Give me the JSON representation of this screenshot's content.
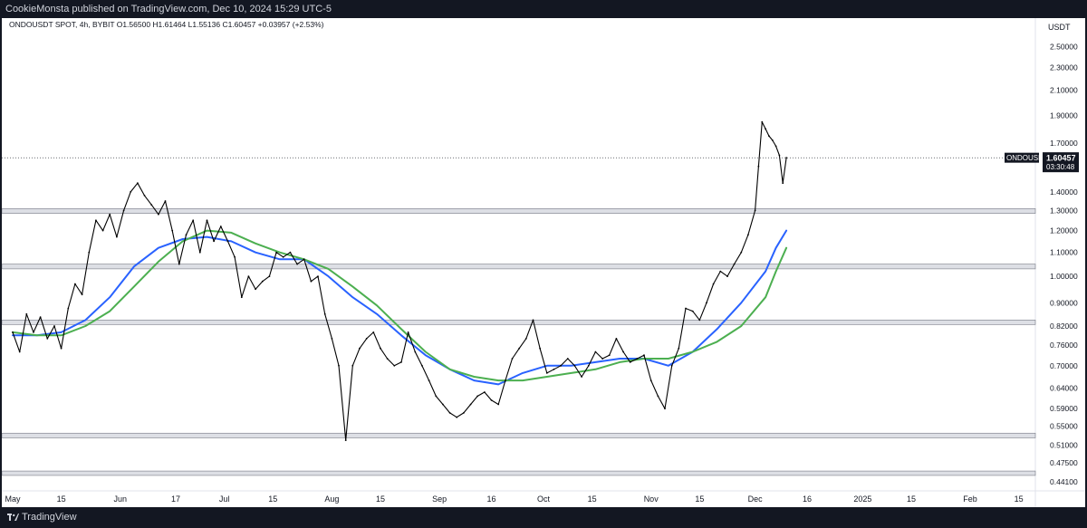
{
  "header": {
    "published_text": "CookieMonsta published on TradingView.com, Dec 10, 2024 15:29 UTC-5"
  },
  "symbol": {
    "info_line": "ONDOUSDT SPOT, 4h, BYBIT  O1.56500  H1.61464  L1.55136  C1.60457  +0.03957 (+2.53%)"
  },
  "footer": {
    "brand": "TradingView",
    "logo_icon": "tradingview-logo-icon"
  },
  "colors": {
    "candle": "#000000",
    "ma_fast": "#2962ff",
    "ma_slow": "#4caf50",
    "zone_fill": "#d1d4dc",
    "zone_stroke": "#787b86",
    "price_label_bg": "#131722"
  },
  "chart_data": {
    "type": "line",
    "symbol": "ONDOUSDT",
    "timeframe": "4h",
    "exchange": "BYBIT",
    "currency": "USDT",
    "yscale": "log",
    "ylim": [
      0.425,
      2.8
    ],
    "xlim": [
      "2024-05-01",
      "2025-02-19"
    ],
    "last_price": {
      "label": "ONDOUSDT",
      "value": "1.60457",
      "countdown": "03:30:48",
      "y": 1.60457
    },
    "y_ticks": [
      "2.50000",
      "2.30000",
      "2.10000",
      "1.90000",
      "1.70000",
      "1.40000",
      "1.30000",
      "1.20000",
      "1.10000",
      "1.00000",
      "0.90000",
      "0.82000",
      "0.76000",
      "0.70000",
      "0.64000",
      "0.59000",
      "0.55000",
      "0.51000",
      "0.47500",
      "0.44100"
    ],
    "x_ticks": [
      {
        "label": "May",
        "date": "2024-05-01"
      },
      {
        "label": "15",
        "date": "2024-05-15"
      },
      {
        "label": "Jun",
        "date": "2024-06-01"
      },
      {
        "label": "17",
        "date": "2024-06-17"
      },
      {
        "label": "Jul",
        "date": "2024-07-01"
      },
      {
        "label": "15",
        "date": "2024-07-15"
      },
      {
        "label": "Aug",
        "date": "2024-08-01"
      },
      {
        "label": "15",
        "date": "2024-08-15"
      },
      {
        "label": "Sep",
        "date": "2024-09-01"
      },
      {
        "label": "16",
        "date": "2024-09-16"
      },
      {
        "label": "Oct",
        "date": "2024-10-01"
      },
      {
        "label": "15",
        "date": "2024-10-15"
      },
      {
        "label": "Nov",
        "date": "2024-11-01"
      },
      {
        "label": "15",
        "date": "2024-11-15"
      },
      {
        "label": "Dec",
        "date": "2024-12-01"
      },
      {
        "label": "16",
        "date": "2024-12-16"
      },
      {
        "label": "2025",
        "date": "2025-01-01"
      },
      {
        "label": "15",
        "date": "2025-01-15"
      },
      {
        "label": "Feb",
        "date": "2025-02-01"
      },
      {
        "label": "15",
        "date": "2025-02-15"
      }
    ],
    "zones": [
      {
        "low": 1.285,
        "high": 1.31
      },
      {
        "low": 1.03,
        "high": 1.05
      },
      {
        "low": 0.825,
        "high": 0.84
      },
      {
        "low": 0.525,
        "high": 0.535
      },
      {
        "low": 0.452,
        "high": 0.46
      }
    ],
    "series": [
      {
        "kind": "price",
        "points": [
          [
            "2024-05-01",
            0.8
          ],
          [
            "2024-05-03",
            0.74
          ],
          [
            "2024-05-05",
            0.86
          ],
          [
            "2024-05-07",
            0.8
          ],
          [
            "2024-05-09",
            0.85
          ],
          [
            "2024-05-11",
            0.78
          ],
          [
            "2024-05-13",
            0.82
          ],
          [
            "2024-05-15",
            0.75
          ],
          [
            "2024-05-17",
            0.88
          ],
          [
            "2024-05-19",
            0.97
          ],
          [
            "2024-05-21",
            0.93
          ],
          [
            "2024-05-23",
            1.1
          ],
          [
            "2024-05-25",
            1.25
          ],
          [
            "2024-05-27",
            1.2
          ],
          [
            "2024-05-29",
            1.28
          ],
          [
            "2024-05-31",
            1.17
          ],
          [
            "2024-06-02",
            1.3
          ],
          [
            "2024-06-04",
            1.4
          ],
          [
            "2024-06-06",
            1.45
          ],
          [
            "2024-06-08",
            1.38
          ],
          [
            "2024-06-10",
            1.33
          ],
          [
            "2024-06-12",
            1.28
          ],
          [
            "2024-06-14",
            1.35
          ],
          [
            "2024-06-16",
            1.2
          ],
          [
            "2024-06-18",
            1.05
          ],
          [
            "2024-06-20",
            1.18
          ],
          [
            "2024-06-22",
            1.25
          ],
          [
            "2024-06-24",
            1.1
          ],
          [
            "2024-06-26",
            1.25
          ],
          [
            "2024-06-28",
            1.15
          ],
          [
            "2024-06-30",
            1.22
          ],
          [
            "2024-07-02",
            1.15
          ],
          [
            "2024-07-04",
            1.08
          ],
          [
            "2024-07-06",
            0.92
          ],
          [
            "2024-07-08",
            1.0
          ],
          [
            "2024-07-10",
            0.95
          ],
          [
            "2024-07-12",
            0.98
          ],
          [
            "2024-07-14",
            1.0
          ],
          [
            "2024-07-16",
            1.1
          ],
          [
            "2024-07-18",
            1.08
          ],
          [
            "2024-07-20",
            1.1
          ],
          [
            "2024-07-22",
            1.05
          ],
          [
            "2024-07-24",
            1.07
          ],
          [
            "2024-07-26",
            0.98
          ],
          [
            "2024-07-28",
            1.0
          ],
          [
            "2024-07-30",
            0.86
          ],
          [
            "2024-08-01",
            0.78
          ],
          [
            "2024-08-03",
            0.7
          ],
          [
            "2024-08-05",
            0.52
          ],
          [
            "2024-08-07",
            0.7
          ],
          [
            "2024-08-09",
            0.75
          ],
          [
            "2024-08-11",
            0.78
          ],
          [
            "2024-08-13",
            0.8
          ],
          [
            "2024-08-15",
            0.75
          ],
          [
            "2024-08-17",
            0.72
          ],
          [
            "2024-08-19",
            0.7
          ],
          [
            "2024-08-21",
            0.71
          ],
          [
            "2024-08-23",
            0.8
          ],
          [
            "2024-08-25",
            0.74
          ],
          [
            "2024-08-27",
            0.7
          ],
          [
            "2024-08-29",
            0.66
          ],
          [
            "2024-08-31",
            0.62
          ],
          [
            "2024-09-02",
            0.6
          ],
          [
            "2024-09-04",
            0.58
          ],
          [
            "2024-09-06",
            0.57
          ],
          [
            "2024-09-08",
            0.58
          ],
          [
            "2024-09-10",
            0.6
          ],
          [
            "2024-09-12",
            0.62
          ],
          [
            "2024-09-14",
            0.63
          ],
          [
            "2024-09-16",
            0.61
          ],
          [
            "2024-09-18",
            0.6
          ],
          [
            "2024-09-20",
            0.66
          ],
          [
            "2024-09-22",
            0.72
          ],
          [
            "2024-09-24",
            0.75
          ],
          [
            "2024-09-26",
            0.78
          ],
          [
            "2024-09-28",
            0.84
          ],
          [
            "2024-09-30",
            0.75
          ],
          [
            "2024-10-02",
            0.68
          ],
          [
            "2024-10-04",
            0.69
          ],
          [
            "2024-10-06",
            0.7
          ],
          [
            "2024-10-08",
            0.72
          ],
          [
            "2024-10-10",
            0.7
          ],
          [
            "2024-10-12",
            0.67
          ],
          [
            "2024-10-14",
            0.7
          ],
          [
            "2024-10-16",
            0.74
          ],
          [
            "2024-10-18",
            0.72
          ],
          [
            "2024-10-20",
            0.73
          ],
          [
            "2024-10-22",
            0.78
          ],
          [
            "2024-10-24",
            0.74
          ],
          [
            "2024-10-26",
            0.71
          ],
          [
            "2024-10-28",
            0.72
          ],
          [
            "2024-10-30",
            0.73
          ],
          [
            "2024-11-01",
            0.66
          ],
          [
            "2024-11-03",
            0.62
          ],
          [
            "2024-11-05",
            0.59
          ],
          [
            "2024-11-07",
            0.7
          ],
          [
            "2024-11-09",
            0.75
          ],
          [
            "2024-11-11",
            0.88
          ],
          [
            "2024-11-13",
            0.87
          ],
          [
            "2024-11-15",
            0.84
          ],
          [
            "2024-11-17",
            0.9
          ],
          [
            "2024-11-19",
            0.97
          ],
          [
            "2024-11-21",
            1.02
          ],
          [
            "2024-11-23",
            1.0
          ],
          [
            "2024-11-25",
            1.05
          ],
          [
            "2024-11-27",
            1.1
          ],
          [
            "2024-11-29",
            1.18
          ],
          [
            "2024-12-01",
            1.3
          ],
          [
            "2024-12-02",
            1.55
          ],
          [
            "2024-12-03",
            1.85
          ],
          [
            "2024-12-04",
            1.8
          ],
          [
            "2024-12-05",
            1.75
          ],
          [
            "2024-12-06",
            1.72
          ],
          [
            "2024-12-07",
            1.68
          ],
          [
            "2024-12-08",
            1.62
          ],
          [
            "2024-12-09",
            1.45
          ],
          [
            "2024-12-10",
            1.60457
          ]
        ]
      },
      {
        "kind": "ma",
        "points": [
          [
            "2024-05-01",
            0.79
          ],
          [
            "2024-05-08",
            0.79
          ],
          [
            "2024-05-15",
            0.8
          ],
          [
            "2024-05-22",
            0.84
          ],
          [
            "2024-05-29",
            0.92
          ],
          [
            "2024-06-05",
            1.04
          ],
          [
            "2024-06-12",
            1.12
          ],
          [
            "2024-06-19",
            1.16
          ],
          [
            "2024-06-26",
            1.17
          ],
          [
            "2024-07-03",
            1.15
          ],
          [
            "2024-07-10",
            1.1
          ],
          [
            "2024-07-17",
            1.07
          ],
          [
            "2024-07-24",
            1.07
          ],
          [
            "2024-07-31",
            1.0
          ],
          [
            "2024-08-07",
            0.92
          ],
          [
            "2024-08-14",
            0.86
          ],
          [
            "2024-08-21",
            0.79
          ],
          [
            "2024-08-28",
            0.73
          ],
          [
            "2024-09-04",
            0.69
          ],
          [
            "2024-09-11",
            0.66
          ],
          [
            "2024-09-18",
            0.65
          ],
          [
            "2024-09-25",
            0.68
          ],
          [
            "2024-10-02",
            0.7
          ],
          [
            "2024-10-09",
            0.7
          ],
          [
            "2024-10-16",
            0.71
          ],
          [
            "2024-10-23",
            0.72
          ],
          [
            "2024-10-30",
            0.72
          ],
          [
            "2024-11-06",
            0.7
          ],
          [
            "2024-11-13",
            0.74
          ],
          [
            "2024-11-20",
            0.81
          ],
          [
            "2024-11-27",
            0.9
          ],
          [
            "2024-12-04",
            1.02
          ],
          [
            "2024-12-07",
            1.12
          ],
          [
            "2024-12-10",
            1.2
          ]
        ]
      },
      {
        "kind": "ma",
        "points": [
          [
            "2024-05-01",
            0.8
          ],
          [
            "2024-05-08",
            0.79
          ],
          [
            "2024-05-15",
            0.79
          ],
          [
            "2024-05-22",
            0.82
          ],
          [
            "2024-05-29",
            0.87
          ],
          [
            "2024-06-05",
            0.96
          ],
          [
            "2024-06-12",
            1.06
          ],
          [
            "2024-06-19",
            1.15
          ],
          [
            "2024-06-26",
            1.2
          ],
          [
            "2024-07-03",
            1.19
          ],
          [
            "2024-07-10",
            1.14
          ],
          [
            "2024-07-17",
            1.1
          ],
          [
            "2024-07-24",
            1.07
          ],
          [
            "2024-07-31",
            1.03
          ],
          [
            "2024-08-07",
            0.96
          ],
          [
            "2024-08-14",
            0.89
          ],
          [
            "2024-08-21",
            0.81
          ],
          [
            "2024-08-28",
            0.74
          ],
          [
            "2024-09-04",
            0.69
          ],
          [
            "2024-09-11",
            0.67
          ],
          [
            "2024-09-18",
            0.66
          ],
          [
            "2024-09-25",
            0.66
          ],
          [
            "2024-10-02",
            0.67
          ],
          [
            "2024-10-09",
            0.68
          ],
          [
            "2024-10-16",
            0.69
          ],
          [
            "2024-10-23",
            0.71
          ],
          [
            "2024-10-30",
            0.72
          ],
          [
            "2024-11-06",
            0.72
          ],
          [
            "2024-11-13",
            0.74
          ],
          [
            "2024-11-20",
            0.77
          ],
          [
            "2024-11-27",
            0.82
          ],
          [
            "2024-12-04",
            0.92
          ],
          [
            "2024-12-07",
            1.02
          ],
          [
            "2024-12-10",
            1.12
          ]
        ]
      }
    ]
  }
}
